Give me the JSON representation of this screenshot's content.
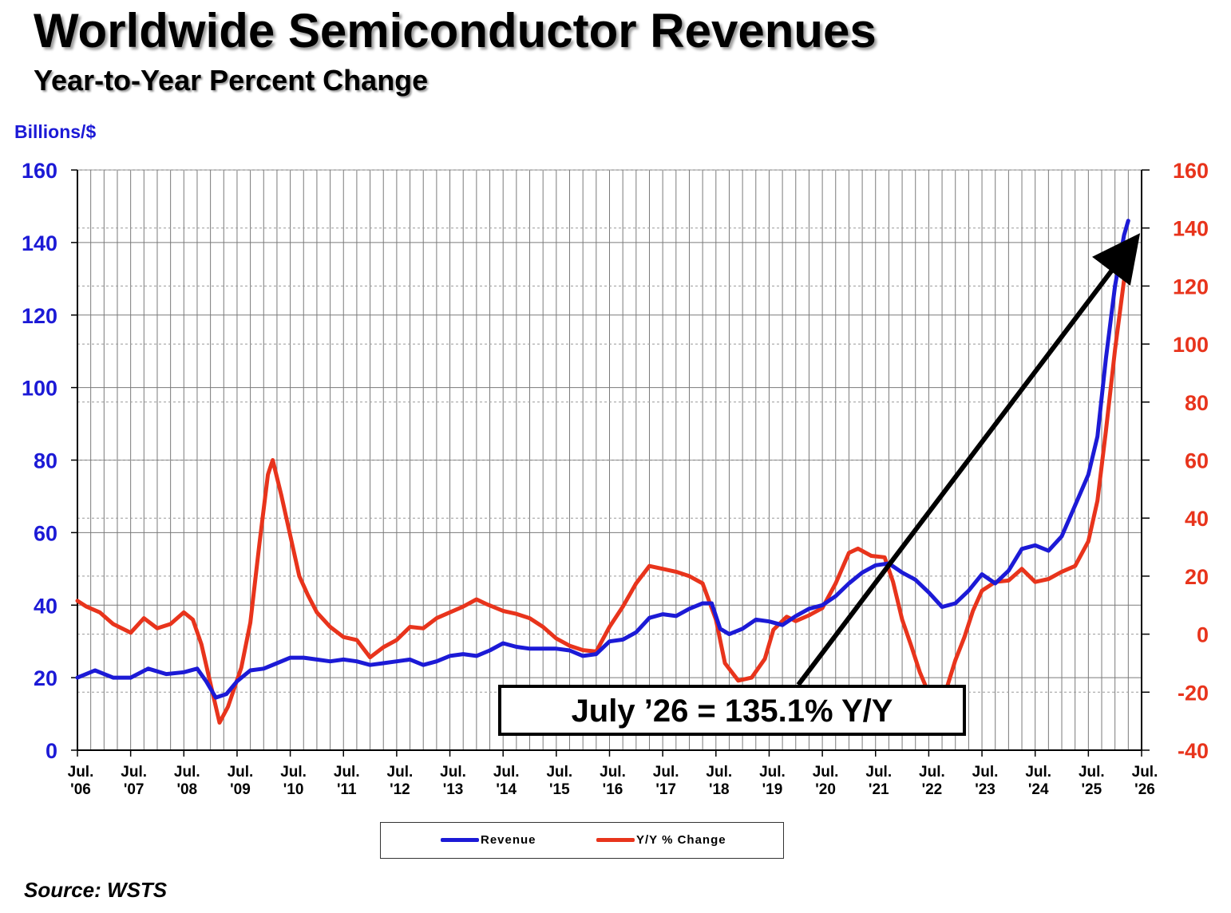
{
  "title": "Worldwide Semiconductor Revenues",
  "subtitle": "Year-to-Year Percent Change",
  "unit_label": "Billions/$",
  "source": "Source: WSTS",
  "callout": "July ’26 = 135.1% Y/Y",
  "colors": {
    "revenue": "#1c1ad6",
    "yoy": "#e8341c",
    "grid": "#7a7a7a",
    "arrow": "#000000"
  },
  "legend": [
    {
      "label": "Revenue",
      "color": "#1c1ad6"
    },
    {
      "label": "Y/Y % Change",
      "color": "#e8341c"
    }
  ],
  "chart_data": {
    "type": "line",
    "x_ticks": [
      {
        "line1": "Jul.",
        "line2": "'06"
      },
      {
        "line1": "Jul.",
        "line2": "'07"
      },
      {
        "line1": "Jul.",
        "line2": "'08"
      },
      {
        "line1": "Jul.",
        "line2": "'09"
      },
      {
        "line1": "Jul.",
        "line2": "'10"
      },
      {
        "line1": "Jul.",
        "line2": "'11"
      },
      {
        "line1": "Jul.",
        "line2": "'12"
      },
      {
        "line1": "Jul.",
        "line2": "'13"
      },
      {
        "line1": "Jul.",
        "line2": "'14"
      },
      {
        "line1": "Jul.",
        "line2": "'15"
      },
      {
        "line1": "Jul.",
        "line2": "'16"
      },
      {
        "line1": "Jul.",
        "line2": "'17"
      },
      {
        "line1": "Jul.",
        "line2": "'18"
      },
      {
        "line1": "Jul.",
        "line2": "'19"
      },
      {
        "line1": "Jul.",
        "line2": "'20"
      },
      {
        "line1": "Jul.",
        "line2": "'21"
      },
      {
        "line1": "Jul.",
        "line2": "'22"
      },
      {
        "line1": "Jul.",
        "line2": "'23"
      },
      {
        "line1": "Jul.",
        "line2": "'24"
      },
      {
        "line1": "Jul.",
        "line2": "'25"
      },
      {
        "line1": "Jul.",
        "line2": "'26"
      }
    ],
    "x_range": [
      2006.5,
      2026.5
    ],
    "y_left": {
      "label": "Billions/$",
      "range": [
        0,
        160
      ],
      "ticks": [
        0,
        20,
        40,
        60,
        80,
        100,
        120,
        140,
        160
      ]
    },
    "y_right": {
      "label": "",
      "range": [
        -40,
        160
      ],
      "ticks": [
        -40,
        -20,
        0,
        20,
        40,
        60,
        80,
        100,
        120,
        140,
        160
      ]
    },
    "grid": true,
    "legend_position": "bottom",
    "series": [
      {
        "name": "Revenue",
        "axis": "left",
        "points": [
          [
            2006.5,
            20.0
          ],
          [
            2006.83,
            22.0
          ],
          [
            2007.17,
            20.0
          ],
          [
            2007.5,
            20.0
          ],
          [
            2007.83,
            22.5
          ],
          [
            2008.17,
            21.0
          ],
          [
            2008.5,
            21.5
          ],
          [
            2008.75,
            22.5
          ],
          [
            2008.92,
            19.0
          ],
          [
            2009.1,
            14.5
          ],
          [
            2009.3,
            15.5
          ],
          [
            2009.5,
            19.0
          ],
          [
            2009.75,
            22.0
          ],
          [
            2010.0,
            22.5
          ],
          [
            2010.25,
            24.0
          ],
          [
            2010.5,
            25.5
          ],
          [
            2010.75,
            25.5
          ],
          [
            2011.0,
            25.0
          ],
          [
            2011.25,
            24.5
          ],
          [
            2011.5,
            25.0
          ],
          [
            2011.75,
            24.5
          ],
          [
            2012.0,
            23.5
          ],
          [
            2012.25,
            24.0
          ],
          [
            2012.5,
            24.5
          ],
          [
            2012.75,
            25.0
          ],
          [
            2013.0,
            23.5
          ],
          [
            2013.25,
            24.5
          ],
          [
            2013.5,
            26.0
          ],
          [
            2013.75,
            26.5
          ],
          [
            2014.0,
            26.0
          ],
          [
            2014.25,
            27.5
          ],
          [
            2014.5,
            29.5
          ],
          [
            2014.75,
            28.5
          ],
          [
            2015.0,
            28.0
          ],
          [
            2015.25,
            28.0
          ],
          [
            2015.5,
            28.0
          ],
          [
            2015.75,
            27.5
          ],
          [
            2016.0,
            26.0
          ],
          [
            2016.25,
            26.5
          ],
          [
            2016.5,
            30.0
          ],
          [
            2016.75,
            30.5
          ],
          [
            2017.0,
            32.5
          ],
          [
            2017.25,
            36.5
          ],
          [
            2017.5,
            37.5
          ],
          [
            2017.75,
            37.0
          ],
          [
            2018.0,
            39.0
          ],
          [
            2018.25,
            40.5
          ],
          [
            2018.42,
            40.5
          ],
          [
            2018.58,
            33.5
          ],
          [
            2018.75,
            32.0
          ],
          [
            2019.0,
            33.5
          ],
          [
            2019.25,
            36.0
          ],
          [
            2019.5,
            35.5
          ],
          [
            2019.75,
            34.5
          ],
          [
            2020.0,
            37.0
          ],
          [
            2020.25,
            39.0
          ],
          [
            2020.5,
            40.0
          ],
          [
            2020.75,
            42.5
          ],
          [
            2021.0,
            46.0
          ],
          [
            2021.25,
            49.0
          ],
          [
            2021.5,
            51.0
          ],
          [
            2021.75,
            51.5
          ],
          [
            2022.0,
            49.0
          ],
          [
            2022.25,
            47.0
          ],
          [
            2022.5,
            43.5
          ],
          [
            2022.75,
            39.5
          ],
          [
            2023.0,
            40.5
          ],
          [
            2023.25,
            44.0
          ],
          [
            2023.5,
            48.5
          ],
          [
            2023.75,
            46.0
          ],
          [
            2024.0,
            49.5
          ],
          [
            2024.25,
            55.5
          ],
          [
            2024.5,
            56.5
          ],
          [
            2024.75,
            55.0
          ],
          [
            2025.0,
            59.0
          ],
          [
            2025.25,
            67.5
          ],
          [
            2025.5,
            76.0
          ],
          [
            2025.67,
            86.5
          ],
          [
            2025.83,
            108.0
          ],
          [
            2026.0,
            128.0
          ],
          [
            2026.17,
            142.0
          ],
          [
            2026.25,
            146.0
          ]
        ]
      },
      {
        "name": "Y/Y % Change",
        "axis": "right",
        "points": [
          [
            2006.5,
            11.5
          ],
          [
            2006.67,
            9.5
          ],
          [
            2006.92,
            7.5
          ],
          [
            2007.17,
            3.5
          ],
          [
            2007.5,
            0.5
          ],
          [
            2007.75,
            5.5
          ],
          [
            2008.0,
            2.0
          ],
          [
            2008.25,
            3.5
          ],
          [
            2008.5,
            7.5
          ],
          [
            2008.67,
            5.0
          ],
          [
            2008.83,
            -3.5
          ],
          [
            2009.0,
            -17.0
          ],
          [
            2009.17,
            -30.5
          ],
          [
            2009.33,
            -25.0
          ],
          [
            2009.58,
            -11.5
          ],
          [
            2009.75,
            4.0
          ],
          [
            2009.92,
            31.0
          ],
          [
            2010.08,
            55.0
          ],
          [
            2010.17,
            60.0
          ],
          [
            2010.33,
            48.0
          ],
          [
            2010.5,
            34.0
          ],
          [
            2010.67,
            20.0
          ],
          [
            2010.83,
            13.5
          ],
          [
            2011.0,
            7.5
          ],
          [
            2011.25,
            2.5
          ],
          [
            2011.5,
            -1.0
          ],
          [
            2011.75,
            -2.0
          ],
          [
            2012.0,
            -8.0
          ],
          [
            2012.25,
            -4.5
          ],
          [
            2012.5,
            -2.0
          ],
          [
            2012.75,
            2.5
          ],
          [
            2013.0,
            2.0
          ],
          [
            2013.25,
            5.5
          ],
          [
            2013.5,
            7.5
          ],
          [
            2013.75,
            9.5
          ],
          [
            2014.0,
            12.0
          ],
          [
            2014.17,
            10.5
          ],
          [
            2014.5,
            8.0
          ],
          [
            2014.75,
            7.0
          ],
          [
            2015.0,
            5.5
          ],
          [
            2015.25,
            2.5
          ],
          [
            2015.5,
            -1.5
          ],
          [
            2015.75,
            -4.0
          ],
          [
            2016.0,
            -5.5
          ],
          [
            2016.25,
            -6.0
          ],
          [
            2016.5,
            2.5
          ],
          [
            2016.75,
            9.5
          ],
          [
            2017.0,
            17.5
          ],
          [
            2017.25,
            23.5
          ],
          [
            2017.5,
            22.5
          ],
          [
            2017.75,
            21.5
          ],
          [
            2018.0,
            20.0
          ],
          [
            2018.25,
            17.5
          ],
          [
            2018.5,
            5.0
          ],
          [
            2018.67,
            -10.0
          ],
          [
            2018.92,
            -16.0
          ],
          [
            2019.17,
            -15.0
          ],
          [
            2019.42,
            -8.5
          ],
          [
            2019.58,
            1.5
          ],
          [
            2019.83,
            6.0
          ],
          [
            2020.0,
            4.5
          ],
          [
            2020.25,
            6.5
          ],
          [
            2020.5,
            9.0
          ],
          [
            2020.75,
            17.5
          ],
          [
            2021.0,
            28.0
          ],
          [
            2021.17,
            29.5
          ],
          [
            2021.42,
            27.0
          ],
          [
            2021.67,
            26.5
          ],
          [
            2021.83,
            18.0
          ],
          [
            2022.0,
            5.0
          ],
          [
            2022.17,
            -4.0
          ],
          [
            2022.33,
            -13.0
          ],
          [
            2022.5,
            -20.5
          ],
          [
            2022.67,
            -22.0
          ],
          [
            2022.83,
            -19.0
          ],
          [
            2023.0,
            -9.0
          ],
          [
            2023.17,
            -1.0
          ],
          [
            2023.33,
            8.0
          ],
          [
            2023.5,
            15.0
          ],
          [
            2023.75,
            18.0
          ],
          [
            2024.0,
            18.5
          ],
          [
            2024.25,
            22.5
          ],
          [
            2024.5,
            18.0
          ],
          [
            2024.75,
            19.0
          ],
          [
            2025.0,
            21.5
          ],
          [
            2025.25,
            23.5
          ],
          [
            2025.5,
            32.0
          ],
          [
            2025.67,
            46.0
          ],
          [
            2025.83,
            70.0
          ],
          [
            2026.0,
            98.0
          ],
          [
            2026.17,
            122.0
          ],
          [
            2026.25,
            135.1
          ]
        ]
      }
    ]
  }
}
